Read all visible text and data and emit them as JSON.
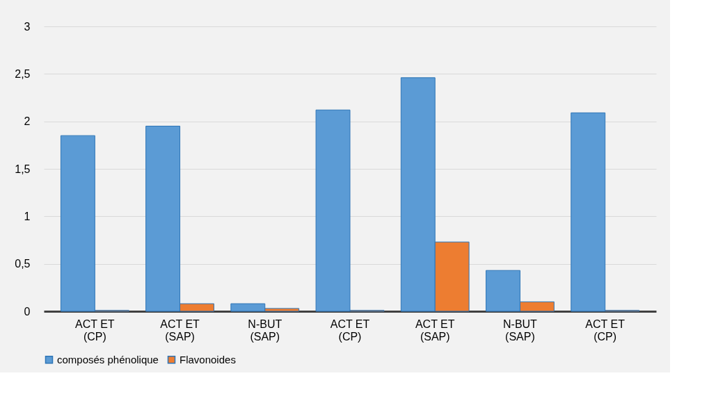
{
  "chart_data": {
    "type": "bar",
    "categories": [
      "ACT ET\n(CP)",
      "ACT ET\n(SAP)",
      "N-BUT\n(SAP)",
      "ACT ET\n(CP)",
      "ACT ET\n(SAP)",
      "N-BUT\n(SAP)",
      "ACT ET\n(CP)"
    ],
    "series": [
      {
        "name": "composés phénolique",
        "color": "#5b9bd5",
        "values": [
          1.85,
          1.95,
          0.08,
          2.12,
          2.46,
          0.43,
          2.09
        ]
      },
      {
        "name": "Flavonoides",
        "color": "#ed7d31",
        "values": [
          0.01,
          0.08,
          0.03,
          0.01,
          0.73,
          0.1,
          0.01
        ]
      }
    ],
    "ylim": [
      0,
      3
    ],
    "yticks": [
      {
        "value": 0,
        "label": "0"
      },
      {
        "value": 0.5,
        "label": "0,5"
      },
      {
        "value": 1,
        "label": "1"
      },
      {
        "value": 1.5,
        "label": "1,5"
      },
      {
        "value": 2,
        "label": "2"
      },
      {
        "value": 2.5,
        "label": "2,5"
      },
      {
        "value": 3,
        "label": "3"
      }
    ],
    "grid": "y",
    "legend": "bottom"
  }
}
